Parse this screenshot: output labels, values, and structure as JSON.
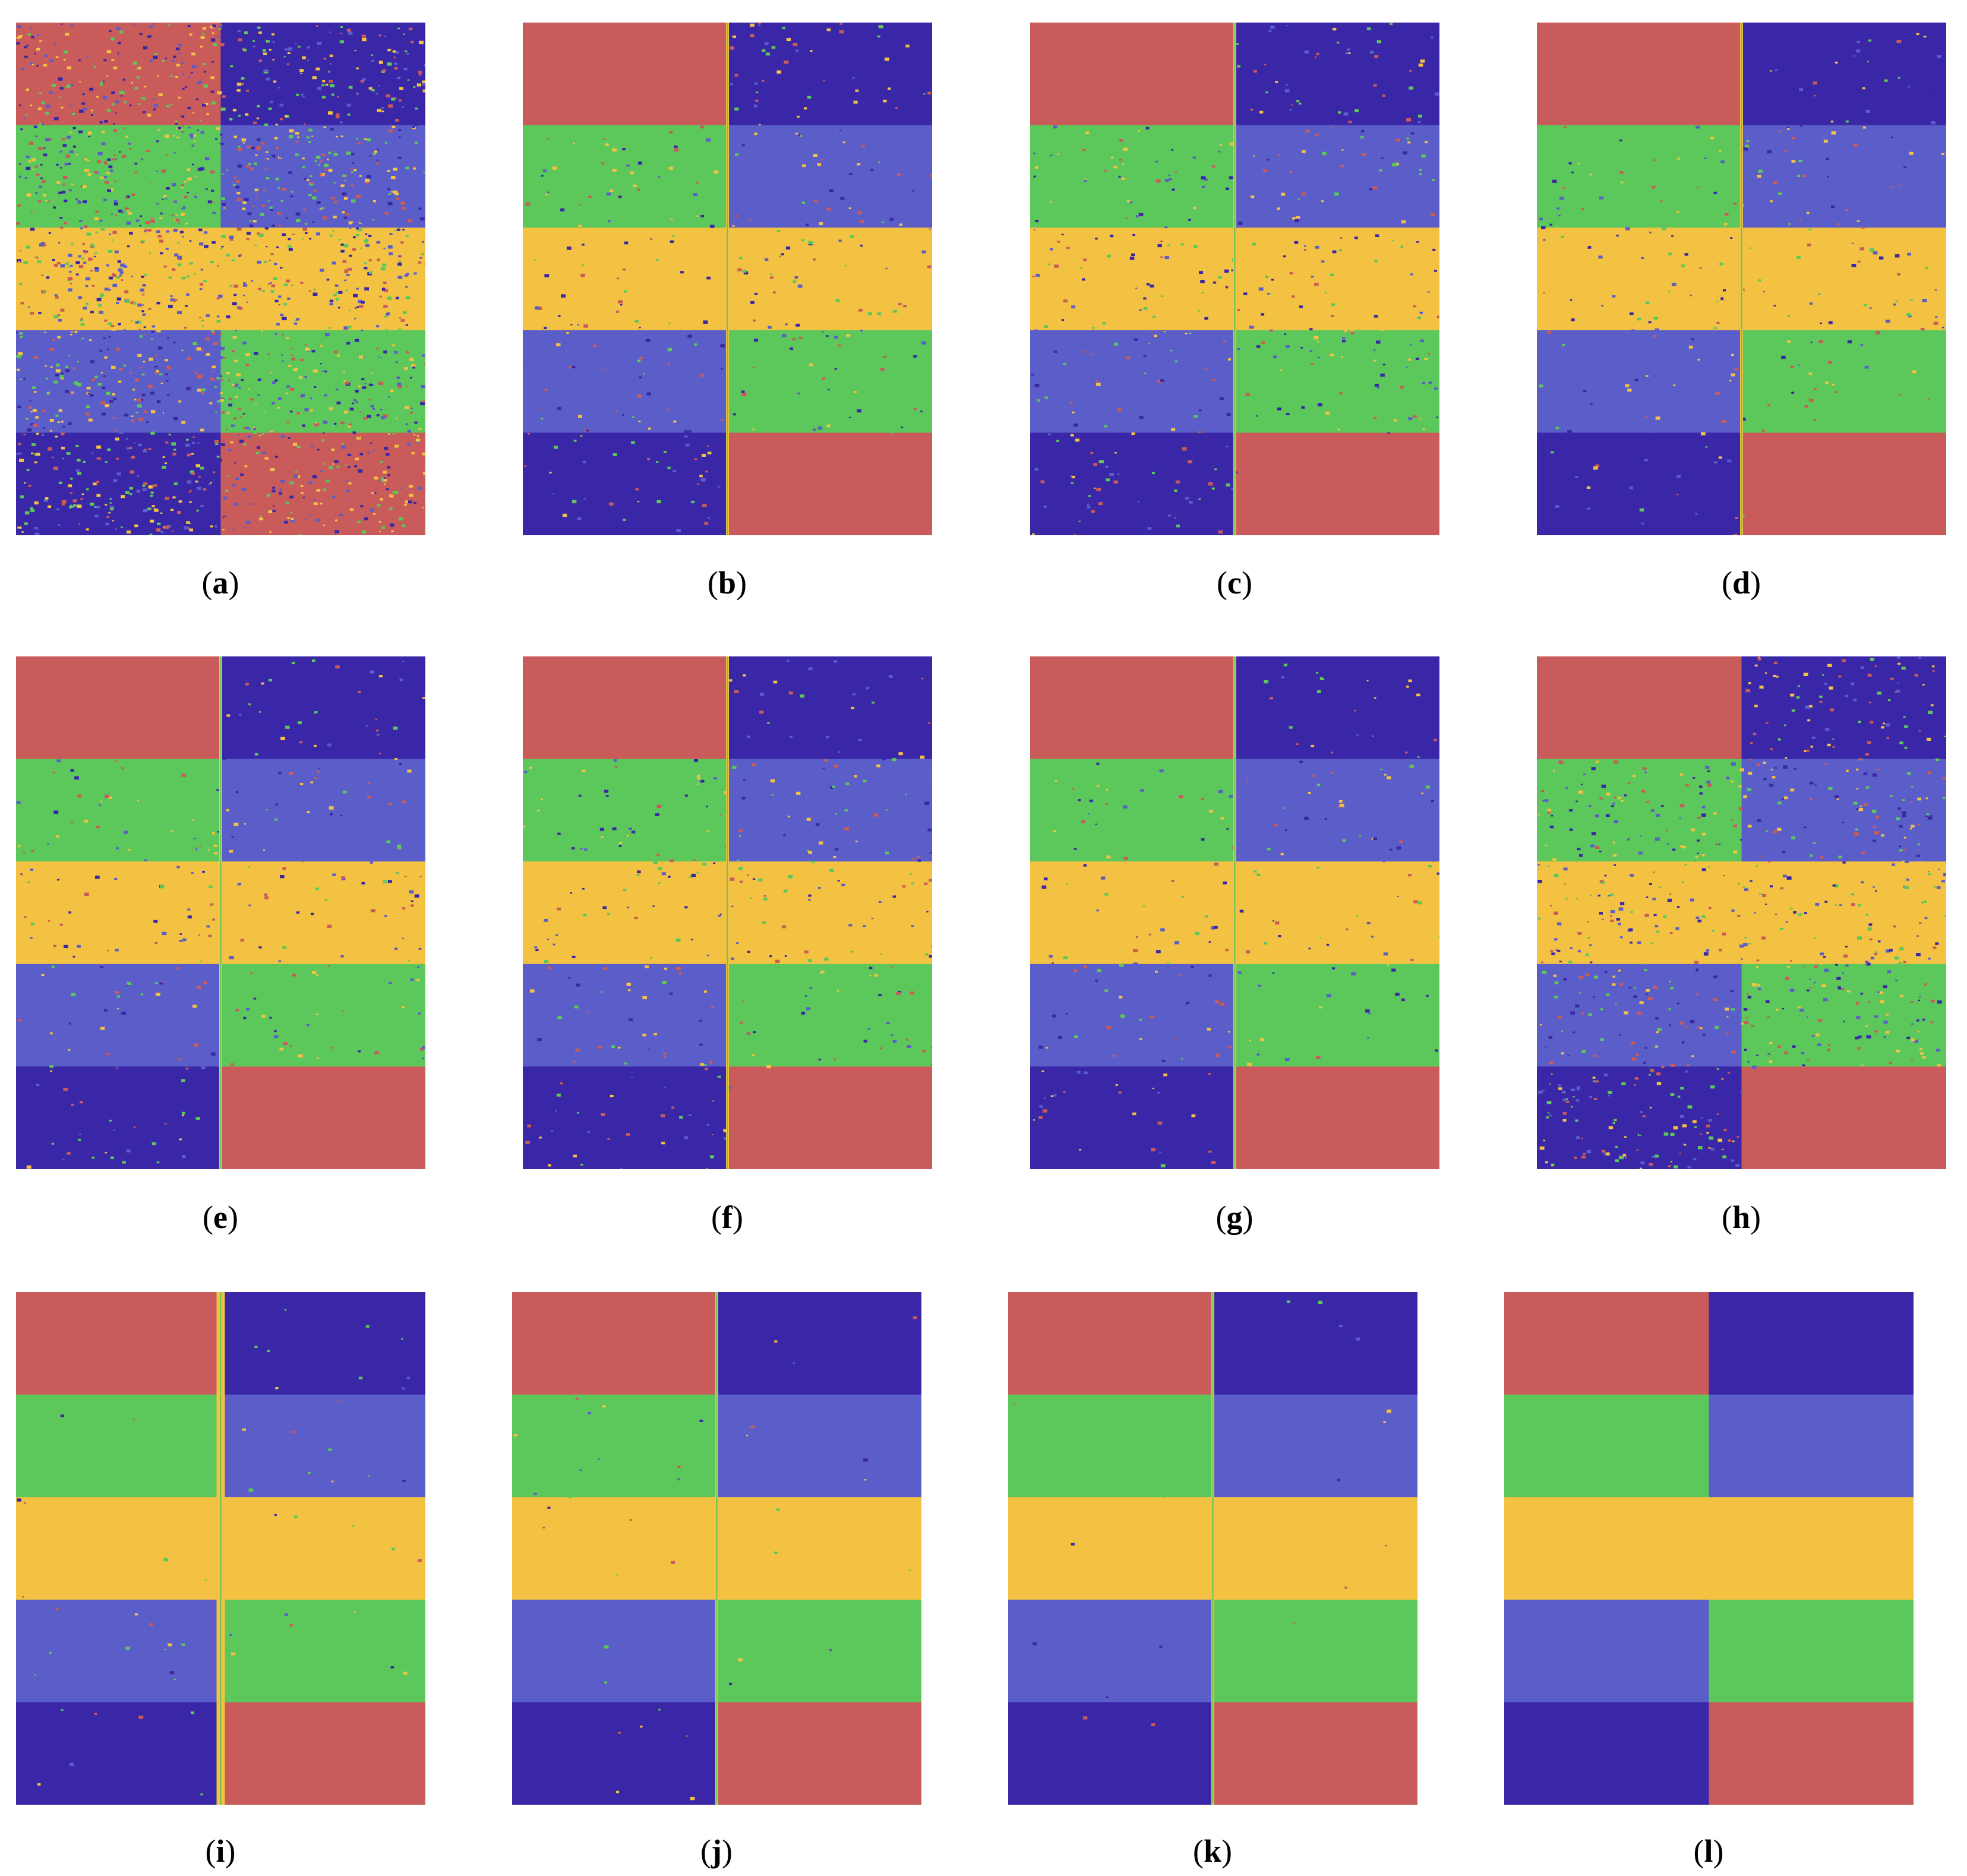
{
  "colors": {
    "red": "#c95c5a",
    "dark_blue": "#3a27a7",
    "light_blue": "#5b5dc8",
    "green": "#5cc85b",
    "yellow": "#f4c242"
  },
  "figure": {
    "class_layout": {
      "description_classes": [
        "red",
        "green",
        "yellow",
        "light_blue",
        "dark_blue"
      ],
      "left_column": [
        "red",
        "green",
        "yellow",
        "light_blue",
        "dark_blue"
      ],
      "right_column": [
        "dark_blue",
        "light_blue",
        "yellow",
        "green",
        "red"
      ]
    },
    "panels": [
      {
        "label": "a",
        "noise_level": 0.85,
        "boundary_style": "none"
      },
      {
        "label": "b",
        "noise_level": 0.18,
        "boundary_style": "thin"
      },
      {
        "label": "c",
        "noise_level": 0.22,
        "boundary_style": "thin"
      },
      {
        "label": "d",
        "noise_level": 0.14,
        "boundary_style": "thin"
      },
      {
        "label": "e",
        "noise_level": 0.16,
        "boundary_style": "thin"
      },
      {
        "label": "f",
        "noise_level": 0.18,
        "boundary_style": "thin"
      },
      {
        "label": "g",
        "noise_level": 0.12,
        "boundary_style": "thin"
      },
      {
        "label": "h",
        "noise_level": 0.45,
        "boundary_style": "none"
      },
      {
        "label": "i",
        "noise_level": 0.03,
        "boundary_style": "thick"
      },
      {
        "label": "j",
        "noise_level": 0.02,
        "boundary_style": "thin"
      },
      {
        "label": "k",
        "noise_level": 0.01,
        "boundary_style": "thin"
      },
      {
        "label": "l",
        "noise_level": 0.0,
        "boundary_style": "none"
      }
    ]
  }
}
